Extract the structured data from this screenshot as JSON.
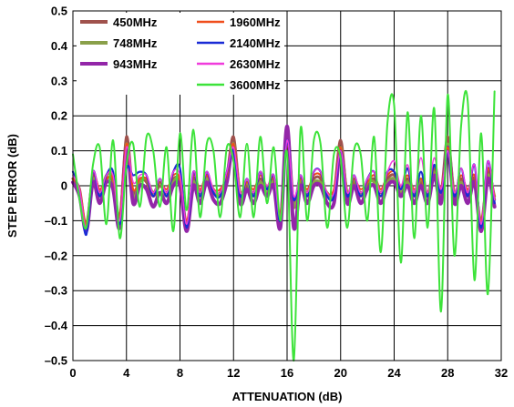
{
  "chart_data": {
    "type": "line",
    "xlabel": "ATTENUATION (dB)",
    "ylabel": "STEP ERROR (dB)",
    "xlim": [
      0,
      32
    ],
    "ylim": [
      -0.5,
      0.5
    ],
    "xticks": [
      0,
      4,
      8,
      12,
      16,
      20,
      24,
      28,
      32
    ],
    "xtick_labels": [
      "0",
      "4",
      "8",
      "12",
      "16",
      "20",
      "24",
      "28",
      "32"
    ],
    "yticks": [
      -0.5,
      -0.4,
      -0.3,
      -0.2,
      -0.1,
      0,
      0.1,
      0.2,
      0.3,
      0.4,
      0.5
    ],
    "ytick_labels": [
      "–0.5",
      "–0.4",
      "–0.3",
      "–0.2",
      "–0.1",
      "0",
      "0.1",
      "0.2",
      "0.3",
      "0.4",
      "0.5"
    ],
    "grid": true,
    "legend_position": "top-left",
    "series": [
      {
        "name": "450MHz",
        "color": "#a0524d",
        "x": [
          0,
          0.5,
          1,
          1.5,
          2,
          2.5,
          3,
          3.5,
          4,
          4.5,
          5,
          5.5,
          6,
          6.5,
          7,
          7.5,
          8,
          8.5,
          9,
          9.5,
          10,
          10.5,
          11,
          11.5,
          12,
          12.5,
          13,
          13.5,
          14,
          14.5,
          15,
          15.5,
          16,
          16.5,
          17,
          17.5,
          18,
          18.5,
          19,
          19.5,
          20,
          20.5,
          21,
          21.5,
          22,
          22.5,
          23,
          23.5,
          24,
          24.5,
          25,
          25.5,
          26,
          26.5,
          27,
          27.5,
          28,
          28.5,
          29,
          29.5,
          30,
          30.5,
          31,
          31.5
        ],
        "y": [
          0.02,
          -0.01,
          -0.12,
          0.03,
          -0.02,
          0.02,
          0.01,
          -0.1,
          0.14,
          -0.02,
          0.02,
          0.01,
          -0.03,
          0,
          -0.02,
          0.02,
          0.01,
          -0.12,
          0.02,
          -0.02,
          0.03,
          -0.02,
          -0.02,
          0.03,
          0.14,
          -0.03,
          0,
          -0.02,
          0.02,
          -0.01,
          0.02,
          -0.1,
          0.16,
          -0.05,
          0.01,
          -0.02,
          0.02,
          0.02,
          -0.03,
          -0.02,
          0.13,
          -0.03,
          0.01,
          -0.02,
          0,
          0.02,
          -0.02,
          0.02,
          0.03,
          -0.01,
          0.02,
          -0.02,
          0.01,
          -0.03,
          0.05,
          -0.02,
          0.14,
          -0.03,
          0.02,
          -0.02,
          0.02,
          -0.12,
          0.04,
          -0.04
        ]
      },
      {
        "name": "748MHz",
        "color": "#8aa04a",
        "x": [
          0,
          0.5,
          1,
          1.5,
          2,
          2.5,
          3,
          3.5,
          4,
          4.5,
          5,
          5.5,
          6,
          6.5,
          7,
          7.5,
          8,
          8.5,
          9,
          9.5,
          10,
          10.5,
          11,
          11.5,
          12,
          12.5,
          13,
          13.5,
          14,
          14.5,
          15,
          15.5,
          16,
          16.5,
          17,
          17.5,
          18,
          18.5,
          19,
          19.5,
          20,
          20.5,
          21,
          21.5,
          22,
          22.5,
          23,
          23.5,
          24,
          24.5,
          25,
          25.5,
          26,
          26.5,
          27,
          27.5,
          28,
          28.5,
          29,
          29.5,
          30,
          30.5,
          31,
          31.5
        ],
        "y": [
          0.01,
          -0.02,
          -0.11,
          0.02,
          -0.03,
          0.03,
          0.02,
          -0.09,
          0.12,
          -0.03,
          0.01,
          0.02,
          -0.02,
          0.01,
          -0.03,
          0.01,
          0.02,
          -0.11,
          0.01,
          -0.03,
          0.02,
          -0.01,
          -0.03,
          0.02,
          0.12,
          -0.02,
          0.01,
          -0.03,
          0.01,
          -0.02,
          0.01,
          -0.09,
          0.14,
          -0.06,
          0.02,
          -0.03,
          0.01,
          0.01,
          -0.02,
          -0.03,
          0.11,
          -0.02,
          0.02,
          -0.03,
          0.01,
          0.01,
          -0.03,
          0.01,
          0.02,
          -0.02,
          0.01,
          -0.03,
          0.02,
          -0.02,
          0.04,
          -0.03,
          0.12,
          -0.02,
          0.01,
          -0.03,
          0.01,
          -0.1,
          0.03,
          -0.03
        ]
      },
      {
        "name": "943MHz",
        "color": "#9326a8",
        "x": [
          0,
          0.5,
          1,
          1.5,
          2,
          2.5,
          3,
          3.5,
          4,
          4.5,
          5,
          5.5,
          6,
          6.5,
          7,
          7.5,
          8,
          8.5,
          9,
          9.5,
          10,
          10.5,
          11,
          11.5,
          12,
          12.5,
          13,
          13.5,
          14,
          14.5,
          15,
          15.5,
          16,
          16.5,
          17,
          17.5,
          18,
          18.5,
          19,
          19.5,
          20,
          20.5,
          21,
          21.5,
          22,
          22.5,
          23,
          23.5,
          24,
          24.5,
          25,
          25.5,
          26,
          26.5,
          27,
          27.5,
          28,
          28.5,
          29,
          29.5,
          30,
          30.5,
          31,
          31.5
        ],
        "y": [
          0.01,
          -0.03,
          -0.13,
          0.01,
          -0.05,
          0.01,
          -0.01,
          -0.12,
          0.11,
          -0.05,
          0,
          -0.01,
          -0.06,
          -0.02,
          -0.05,
          0,
          0,
          -0.13,
          0,
          -0.05,
          0.01,
          -0.04,
          -0.05,
          0.01,
          0.11,
          -0.05,
          -0.01,
          -0.05,
          0,
          -0.03,
          0,
          -0.12,
          0.17,
          -0.12,
          0,
          -0.05,
          0,
          0,
          -0.05,
          -0.05,
          0.1,
          -0.05,
          0,
          -0.05,
          -0.01,
          0,
          -0.05,
          0,
          0.01,
          -0.03,
          0,
          -0.05,
          0,
          -0.05,
          0.03,
          -0.05,
          0.11,
          -0.05,
          0,
          -0.05,
          0.01,
          -0.13,
          0.02,
          -0.06
        ]
      },
      {
        "name": "1960MHz",
        "color": "#f04e1c",
        "x": [
          0,
          0.5,
          1,
          1.5,
          2,
          2.5,
          3,
          3.5,
          4,
          4.5,
          5,
          5.5,
          6,
          6.5,
          7,
          7.5,
          8,
          8.5,
          9,
          9.5,
          10,
          10.5,
          11,
          11.5,
          12,
          12.5,
          13,
          13.5,
          14,
          14.5,
          15,
          15.5,
          16,
          16.5,
          17,
          17.5,
          18,
          18.5,
          19,
          19.5,
          20,
          20.5,
          21,
          21.5,
          22,
          22.5,
          23,
          23.5,
          24,
          24.5,
          25,
          25.5,
          26,
          26.5,
          27,
          27.5,
          28,
          28.5,
          29,
          29.5,
          30,
          30.5,
          31,
          31.5
        ],
        "y": [
          0.02,
          -0.01,
          -0.11,
          0.03,
          -0.01,
          0.02,
          0.02,
          -0.09,
          0.12,
          -0.01,
          0.02,
          0.02,
          -0.02,
          0.01,
          -0.01,
          0.03,
          0.02,
          -0.1,
          0.03,
          -0.01,
          0.03,
          -0.01,
          -0.01,
          0.03,
          0.12,
          -0.02,
          0.01,
          -0.01,
          0.03,
          0,
          0.02,
          -0.08,
          0.12,
          -0.04,
          0.02,
          -0.01,
          0.03,
          0.03,
          -0.02,
          -0.01,
          0.11,
          -0.02,
          0.02,
          -0.01,
          0.01,
          0.03,
          -0.01,
          0.03,
          0.04,
          0,
          0.03,
          -0.01,
          0.02,
          -0.02,
          0.05,
          -0.01,
          0.11,
          -0.02,
          0.03,
          -0.01,
          0.03,
          -0.1,
          0.05,
          -0.03
        ]
      },
      {
        "name": "2140MHz",
        "color": "#1a2bd6",
        "x": [
          0,
          0.5,
          1,
          1.5,
          2,
          2.5,
          3,
          3.5,
          4,
          4.5,
          5,
          5.5,
          6,
          6.5,
          7,
          7.5,
          8,
          8.5,
          9,
          9.5,
          10,
          10.5,
          11,
          11.5,
          12,
          12.5,
          13,
          13.5,
          14,
          14.5,
          15,
          15.5,
          16,
          16.5,
          17,
          17.5,
          18,
          18.5,
          19,
          19.5,
          20,
          20.5,
          21,
          21.5,
          22,
          22.5,
          23,
          23.5,
          24,
          24.5,
          25,
          25.5,
          26,
          26.5,
          27,
          27.5,
          28,
          28.5,
          29,
          29.5,
          30,
          30.5,
          31,
          31.5
        ],
        "y": [
          0.04,
          -0.02,
          -0.14,
          0.04,
          -0.03,
          0.03,
          0.04,
          -0.11,
          0.05,
          0.03,
          0.04,
          0.03,
          -0.03,
          0.02,
          -0.03,
          0.04,
          0.05,
          -0.12,
          0.04,
          -0.03,
          0.04,
          -0.02,
          -0.03,
          0.04,
          0.1,
          -0.03,
          0.02,
          -0.03,
          0.04,
          -0.01,
          0.03,
          -0.1,
          0.13,
          -0.04,
          0.03,
          -0.03,
          0.04,
          0.04,
          -0.03,
          -0.03,
          0.1,
          -0.03,
          0.03,
          -0.03,
          0.02,
          0.04,
          -0.03,
          0.04,
          0.04,
          -0.01,
          0.05,
          -0.03,
          0.04,
          -0.03,
          0.06,
          -0.02,
          0.1,
          -0.03,
          0.05,
          -0.03,
          0.06,
          -0.12,
          0.07,
          -0.05
        ]
      },
      {
        "name": "2630MHz",
        "color": "#f03cdc",
        "x": [
          0,
          0.5,
          1,
          1.5,
          2,
          2.5,
          3,
          3.5,
          4,
          4.5,
          5,
          5.5,
          6,
          6.5,
          7,
          7.5,
          8,
          8.5,
          9,
          9.5,
          10,
          10.5,
          11,
          11.5,
          12,
          12.5,
          13,
          13.5,
          14,
          14.5,
          15,
          15.5,
          16,
          16.5,
          17,
          17.5,
          18,
          18.5,
          19,
          19.5,
          20,
          20.5,
          21,
          21.5,
          22,
          22.5,
          23,
          23.5,
          24,
          24.5,
          25,
          25.5,
          26,
          26.5,
          27,
          27.5,
          28,
          28.5,
          29,
          29.5,
          30,
          30.5,
          31,
          31.5
        ],
        "y": [
          0.03,
          -0.01,
          -0.12,
          0.04,
          -0.02,
          0.03,
          0.03,
          -0.1,
          0.11,
          0.01,
          0.03,
          0.03,
          -0.02,
          0.02,
          -0.02,
          0.04,
          0.03,
          -0.11,
          0.04,
          -0.02,
          0.04,
          -0.01,
          -0.02,
          0.04,
          0.11,
          -0.02,
          0.02,
          -0.02,
          0.04,
          0,
          0.03,
          -0.09,
          0.13,
          -0.03,
          0.03,
          -0.02,
          0.04,
          0.04,
          -0.02,
          -0.02,
          0.1,
          -0.02,
          0.03,
          -0.02,
          0.02,
          0.04,
          -0.02,
          0.04,
          0.07,
          0,
          0.06,
          -0.02,
          0.08,
          -0.02,
          0.08,
          -0.01,
          0.1,
          -0.02,
          0.05,
          -0.02,
          0.06,
          -0.11,
          0.07,
          -0.04
        ]
      },
      {
        "name": "3600MHz",
        "color": "#3de33a",
        "x": [
          0,
          0.5,
          1,
          1.5,
          2,
          2.5,
          3,
          3.5,
          4,
          4.5,
          5,
          5.5,
          6,
          6.5,
          7,
          7.5,
          8,
          8.5,
          9,
          9.5,
          10,
          10.5,
          11,
          11.5,
          12,
          12.5,
          13,
          13.5,
          14,
          14.5,
          15,
          15.5,
          16,
          16.5,
          17,
          17.5,
          18,
          18.5,
          19,
          19.5,
          20,
          20.5,
          21,
          21.5,
          22,
          22.5,
          23,
          23.5,
          24,
          24.5,
          25,
          25.5,
          26,
          26.5,
          27,
          27.5,
          28,
          28.5,
          29,
          29.5,
          30,
          30.5,
          31,
          31.5
        ],
        "y": [
          0.09,
          -0.04,
          -0.12,
          0.06,
          0.11,
          -0.11,
          0.13,
          -0.15,
          0.06,
          0.12,
          -0.06,
          0.14,
          0.1,
          -0.06,
          0.11,
          -0.13,
          0.15,
          -0.07,
          0.16,
          -0.09,
          0.12,
          0.1,
          -0.09,
          0.11,
          0.07,
          -0.09,
          0.12,
          -0.09,
          0.14,
          -0.05,
          0.11,
          -0.1,
          0.09,
          -0.5,
          0.16,
          -0.1,
          0.13,
          0.12,
          -0.12,
          0.09,
          0.08,
          -0.12,
          0.1,
          0.09,
          -0.1,
          0.14,
          -0.19,
          0.18,
          0.23,
          -0.22,
          0.21,
          -0.15,
          0.2,
          -0.12,
          0.22,
          -0.36,
          0.26,
          -0.2,
          0.17,
          0.24,
          -0.27,
          0.15,
          -0.31,
          0.27
        ]
      }
    ]
  }
}
